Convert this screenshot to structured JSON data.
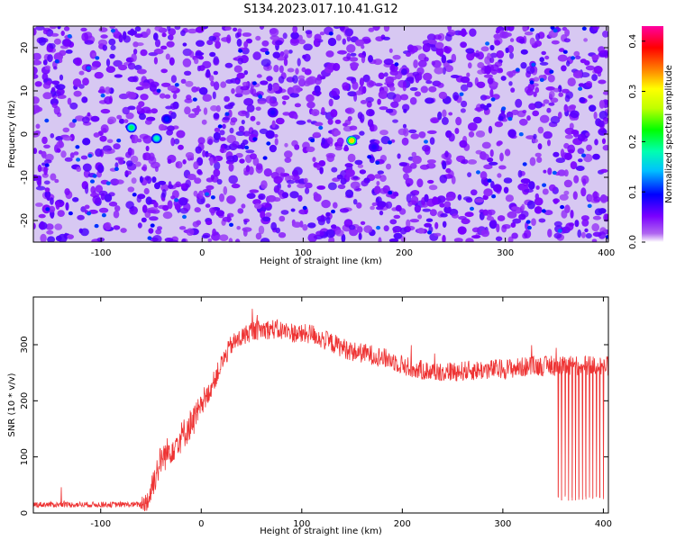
{
  "title": "S134.2023.017.10.41.G12",
  "chart_data": [
    {
      "type": "heatmap",
      "xlabel": "Height of straight line (km)",
      "ylabel": "Frequency (Hz)",
      "xlim": [
        -167,
        402
      ],
      "ylim": [
        -25,
        25
      ],
      "xticks": [
        -100,
        0,
        100,
        200,
        300,
        400
      ],
      "yticks": [
        -20,
        -10,
        0,
        10,
        20
      ],
      "colorbar": {
        "label": "Normalized spectral amplitude",
        "range": [
          0,
          0.43
        ],
        "ticks": [
          "0.0",
          "0.1",
          "0.2",
          "0.3",
          "0.4"
        ],
        "colors": [
          "#ffffff",
          "#b066f0",
          "#7a00ff",
          "#0000ff",
          "#00c0ff",
          "#00ffb0",
          "#00ff00",
          "#c0ff00",
          "#ffff00",
          "#ff8000",
          "#ff0000",
          "#ff00a0"
        ]
      },
      "background_level": 0.02,
      "speckle_level_range": [
        0.03,
        0.07
      ],
      "hotspots": [
        {
          "x": 148,
          "y": -1.5,
          "value": 0.32
        },
        {
          "x": -70,
          "y": 1.5,
          "value": 0.2
        },
        {
          "x": -45,
          "y": -1,
          "value": 0.18
        },
        {
          "x": -35,
          "y": 3.5,
          "value": 0.1
        },
        {
          "x": 70,
          "y": 5,
          "value": 0.08
        },
        {
          "x": 170,
          "y": -3,
          "value": 0.08
        }
      ]
    },
    {
      "type": "line",
      "xlabel": "Height of straight line (km)",
      "ylabel": "SNR (10 * v/v)",
      "xlim": [
        -167,
        405
      ],
      "ylim": [
        0,
        385
      ],
      "xticks": [
        -100,
        0,
        100,
        200,
        300,
        400
      ],
      "yticks": [
        0,
        100,
        200,
        300
      ],
      "series": [
        {
          "color": "#ee3333",
          "profile": {
            "x": [
              -167,
              -60,
              -52,
              -48,
              -40,
              -20,
              0,
              10,
              20,
              30,
              50,
              70,
              90,
              100,
              110,
              120,
              130,
              150,
              170,
              190,
              210,
              230,
              250,
              270,
              290,
              310,
              330,
              350,
              380,
              405
            ],
            "y": [
              15,
              15,
              25,
              55,
              95,
              135,
              185,
              225,
              265,
              300,
              325,
              328,
              322,
              318,
              320,
              310,
              303,
              288,
              282,
              272,
              257,
              252,
              252,
              254,
              256,
              258,
              262,
              262,
              262,
              262
            ]
          },
          "noise_amplitude": 18,
          "dropouts": {
            "x_range": [
              355,
              400
            ],
            "count": 14,
            "min": 22
          }
        }
      ]
    }
  ]
}
